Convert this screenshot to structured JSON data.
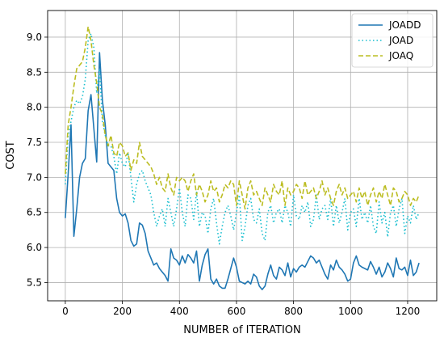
{
  "chart_data": {
    "type": "line",
    "title": "",
    "xlabel": "NUMBER of ITERATION",
    "ylabel": "COST",
    "xlim": [
      -62,
      1302
    ],
    "ylim": [
      5.24,
      9.38
    ],
    "xticks": [
      0,
      200,
      400,
      600,
      800,
      1000,
      1200
    ],
    "yticks": [
      5.5,
      6.0,
      6.5,
      7.0,
      7.5,
      8.0,
      8.5,
      9.0
    ],
    "grid": true,
    "legend_position": "top-right",
    "series": [
      {
        "name": "JOADD",
        "color": "#1f77b4",
        "style": "solid",
        "x": [
          0,
          10,
          20,
          30,
          40,
          50,
          60,
          70,
          80,
          90,
          100,
          110,
          120,
          130,
          140,
          150,
          160,
          170,
          180,
          190,
          200,
          210,
          220,
          230,
          240,
          250,
          260,
          270,
          280,
          290,
          300,
          310,
          320,
          330,
          340,
          350,
          360,
          370,
          380,
          390,
          400,
          410,
          420,
          430,
          440,
          450,
          460,
          470,
          480,
          490,
          500,
          510,
          520,
          530,
          540,
          550,
          560,
          570,
          580,
          590,
          600,
          610,
          620,
          630,
          640,
          650,
          660,
          670,
          680,
          690,
          700,
          710,
          720,
          730,
          740,
          750,
          760,
          770,
          780,
          790,
          800,
          810,
          820,
          830,
          840,
          850,
          860,
          870,
          880,
          890,
          900,
          910,
          920,
          930,
          940,
          950,
          960,
          970,
          980,
          990,
          1000,
          1010,
          1020,
          1030,
          1040,
          1050,
          1060,
          1070,
          1080,
          1090,
          1100,
          1110,
          1120,
          1130,
          1140,
          1150,
          1160,
          1170,
          1180,
          1190,
          1200,
          1210,
          1220,
          1230,
          1240
        ],
        "y": [
          6.42,
          7.05,
          7.75,
          6.16,
          6.55,
          7.0,
          7.2,
          7.27,
          7.95,
          8.18,
          7.7,
          7.22,
          8.78,
          8.1,
          7.75,
          7.2,
          7.15,
          7.1,
          6.7,
          6.5,
          6.45,
          6.48,
          6.35,
          6.1,
          6.02,
          6.05,
          6.35,
          6.32,
          6.2,
          5.95,
          5.85,
          5.75,
          5.78,
          5.7,
          5.65,
          5.6,
          5.52,
          5.98,
          5.85,
          5.82,
          5.75,
          5.88,
          5.78,
          5.9,
          5.85,
          5.78,
          5.95,
          5.52,
          5.75,
          5.9,
          5.98,
          5.55,
          5.48,
          5.55,
          5.45,
          5.42,
          5.42,
          5.55,
          5.7,
          5.85,
          5.72,
          5.52,
          5.5,
          5.48,
          5.52,
          5.48,
          5.62,
          5.58,
          5.45,
          5.4,
          5.45,
          5.62,
          5.75,
          5.6,
          5.55,
          5.72,
          5.68,
          5.6,
          5.78,
          5.58,
          5.7,
          5.65,
          5.72,
          5.75,
          5.72,
          5.8,
          5.88,
          5.85,
          5.78,
          5.82,
          5.72,
          5.62,
          5.55,
          5.75,
          5.68,
          5.82,
          5.72,
          5.68,
          5.62,
          5.52,
          5.55,
          5.78,
          5.88,
          5.75,
          5.72,
          5.7,
          5.68,
          5.8,
          5.72,
          5.62,
          5.72,
          5.58,
          5.65,
          5.78,
          5.7,
          5.58,
          5.85,
          5.7,
          5.68,
          5.72,
          5.6,
          5.82,
          5.6,
          5.65,
          5.78
        ]
      },
      {
        "name": "JOAD",
        "color": "#17becf",
        "style": "dotted",
        "x": [
          0,
          10,
          20,
          30,
          40,
          50,
          60,
          70,
          80,
          90,
          100,
          110,
          120,
          130,
          140,
          150,
          160,
          170,
          180,
          190,
          200,
          210,
          220,
          230,
          240,
          250,
          260,
          270,
          280,
          290,
          300,
          310,
          320,
          330,
          340,
          350,
          360,
          370,
          380,
          390,
          400,
          410,
          420,
          430,
          440,
          450,
          460,
          470,
          480,
          490,
          500,
          510,
          520,
          530,
          540,
          550,
          560,
          570,
          580,
          590,
          600,
          610,
          620,
          630,
          640,
          650,
          660,
          670,
          680,
          690,
          700,
          710,
          720,
          730,
          740,
          750,
          760,
          770,
          780,
          790,
          800,
          810,
          820,
          830,
          840,
          850,
          860,
          870,
          880,
          890,
          900,
          910,
          920,
          930,
          940,
          950,
          960,
          970,
          980,
          990,
          1000,
          1010,
          1020,
          1030,
          1040,
          1050,
          1060,
          1070,
          1080,
          1090,
          1100,
          1110,
          1120,
          1130,
          1140,
          1150,
          1160,
          1170,
          1180,
          1190,
          1200,
          1210,
          1220,
          1230,
          1240
        ],
        "y": [
          6.9,
          7.6,
          7.8,
          8.0,
          8.1,
          8.05,
          8.15,
          8.4,
          8.95,
          9.05,
          8.85,
          8.2,
          8.55,
          7.8,
          7.6,
          7.45,
          7.45,
          7.3,
          7.05,
          7.35,
          7.2,
          7.15,
          7.35,
          7.0,
          6.65,
          6.9,
          7.05,
          7.1,
          6.95,
          6.85,
          6.75,
          6.5,
          6.3,
          6.45,
          6.55,
          6.3,
          6.7,
          6.5,
          6.3,
          6.55,
          6.85,
          6.5,
          6.3,
          6.75,
          6.7,
          6.4,
          6.8,
          6.3,
          6.5,
          6.45,
          6.2,
          6.55,
          6.7,
          6.35,
          6.05,
          6.3,
          6.5,
          6.6,
          6.45,
          6.25,
          6.5,
          6.75,
          6.1,
          6.3,
          6.6,
          6.7,
          6.4,
          6.35,
          6.55,
          6.2,
          6.1,
          6.5,
          6.6,
          6.35,
          6.5,
          6.55,
          6.35,
          6.6,
          6.5,
          6.3,
          6.75,
          6.45,
          6.4,
          6.6,
          6.5,
          6.65,
          6.3,
          6.4,
          6.75,
          6.4,
          6.55,
          6.6,
          6.4,
          6.7,
          6.3,
          6.6,
          6.35,
          6.5,
          6.7,
          6.25,
          6.5,
          6.55,
          6.3,
          6.7,
          6.4,
          6.5,
          6.35,
          6.6,
          6.3,
          6.2,
          6.65,
          6.35,
          6.5,
          6.15,
          6.5,
          6.6,
          6.3,
          6.55,
          6.7,
          6.2,
          6.45,
          6.35,
          6.6,
          6.4,
          6.5
        ]
      },
      {
        "name": "JOAQ",
        "color": "#bcbd22",
        "style": "dashed",
        "x": [
          0,
          10,
          20,
          30,
          40,
          50,
          60,
          70,
          80,
          90,
          100,
          110,
          120,
          130,
          140,
          150,
          160,
          170,
          180,
          190,
          200,
          210,
          220,
          230,
          240,
          250,
          260,
          270,
          280,
          290,
          300,
          310,
          320,
          330,
          340,
          350,
          360,
          370,
          380,
          390,
          400,
          410,
          420,
          430,
          440,
          450,
          460,
          470,
          480,
          490,
          500,
          510,
          520,
          530,
          540,
          550,
          560,
          570,
          580,
          590,
          600,
          610,
          620,
          630,
          640,
          650,
          660,
          670,
          680,
          690,
          700,
          710,
          720,
          730,
          740,
          750,
          760,
          770,
          780,
          790,
          800,
          810,
          820,
          830,
          840,
          850,
          860,
          870,
          880,
          890,
          900,
          910,
          920,
          930,
          940,
          950,
          960,
          970,
          980,
          990,
          1000,
          1010,
          1020,
          1030,
          1040,
          1050,
          1060,
          1070,
          1080,
          1090,
          1100,
          1110,
          1120,
          1130,
          1140,
          1150,
          1160,
          1170,
          1180,
          1190,
          1200,
          1210,
          1220,
          1230,
          1240
        ],
        "y": [
          7.05,
          7.75,
          8.0,
          8.3,
          8.55,
          8.6,
          8.65,
          8.85,
          9.15,
          8.95,
          8.6,
          8.35,
          8.0,
          7.9,
          7.6,
          7.45,
          7.6,
          7.35,
          7.3,
          7.5,
          7.45,
          7.3,
          7.35,
          7.1,
          7.25,
          7.2,
          7.5,
          7.3,
          7.25,
          7.2,
          7.15,
          7.05,
          6.9,
          7.0,
          6.85,
          6.8,
          7.05,
          6.85,
          6.75,
          7.0,
          6.95,
          7.0,
          6.95,
          6.8,
          6.95,
          7.05,
          6.75,
          6.9,
          6.8,
          6.65,
          6.75,
          6.95,
          6.8,
          6.85,
          6.65,
          6.75,
          6.9,
          6.85,
          6.95,
          6.9,
          6.6,
          6.95,
          6.75,
          6.55,
          6.85,
          6.95,
          6.75,
          6.8,
          6.7,
          6.6,
          6.85,
          6.75,
          6.65,
          6.9,
          6.8,
          6.75,
          6.95,
          6.6,
          6.85,
          6.75,
          6.8,
          6.9,
          6.85,
          6.7,
          6.95,
          6.75,
          6.8,
          6.85,
          6.7,
          6.8,
          6.95,
          6.75,
          6.85,
          6.7,
          6.6,
          6.8,
          6.9,
          6.75,
          6.85,
          6.7,
          6.75,
          6.8,
          6.65,
          6.85,
          6.7,
          6.8,
          6.6,
          6.75,
          6.85,
          6.65,
          6.8,
          6.7,
          6.9,
          6.75,
          6.6,
          6.85,
          6.8,
          6.65,
          6.7,
          6.8,
          6.75,
          6.6,
          6.7,
          6.65,
          6.75
        ]
      }
    ]
  }
}
